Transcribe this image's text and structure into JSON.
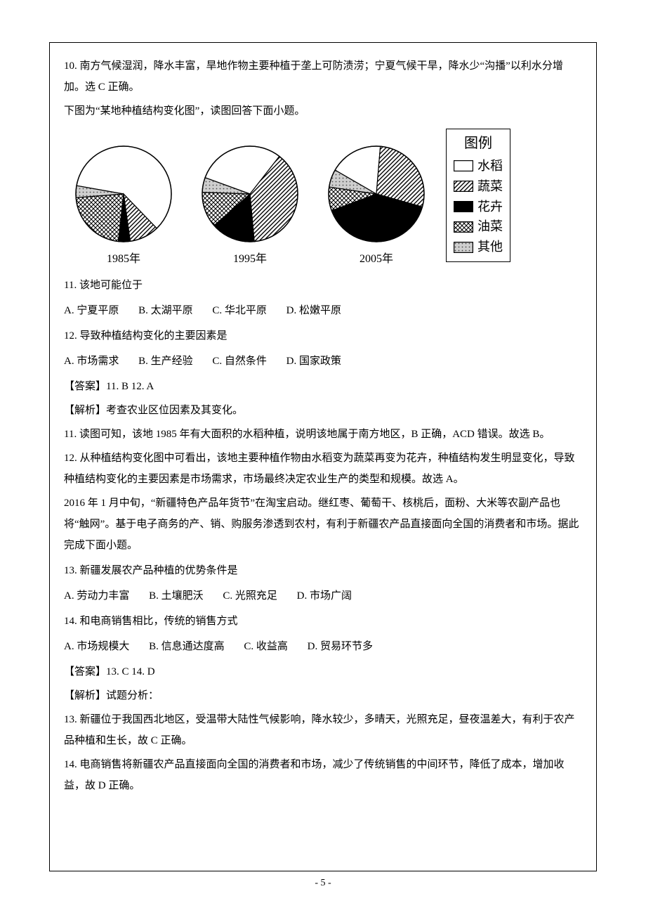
{
  "line_q10_expl": "10. 南方气候湿润，降水丰富，旱地作物主要种植于垄上可防渍涝；宁夏气候干旱，降水少“沟播”以利水分增加。选 C 正确。",
  "fig_intro": "下图为“某地种植结构变化图”，读图回答下面小题。",
  "fig": {
    "years": [
      "1985年",
      "1995年",
      "2005年"
    ],
    "legend_title": "图例",
    "legend_items": [
      "水稻",
      "蔬菜",
      "花卉",
      "油菜",
      "其他"
    ],
    "pies": {
      "1985": {
        "水稻": 60,
        "蔬菜": 10,
        "花卉": 4,
        "油菜": 22,
        "其他": 4
      },
      "1995": {
        "水稻": 30,
        "蔬菜": 38,
        "花卉": 15,
        "油菜": 12,
        "其他": 5
      },
      "2005": {
        "水稻": 18,
        "蔬菜": 28,
        "花卉": 40,
        "油菜": 8,
        "其他": 6
      }
    },
    "fills": {
      "水稻": "white",
      "蔬菜": "diag",
      "花卉": "black",
      "油菜": "cross",
      "其他": "dots"
    },
    "colors": {
      "stroke": "#000000",
      "bg": "#ffffff"
    }
  },
  "q11": {
    "stem": "11. 该地可能位于",
    "opts": {
      "A": "A. 宁夏平原",
      "B": "B. 太湖平原",
      "C": "C. 华北平原",
      "D": "D. 松嫩平原"
    }
  },
  "q12": {
    "stem": "12. 导致种植结构变化的主要因素是",
    "opts": {
      "A": "A. 市场需求",
      "B": "B. 生产经验",
      "C": "C. 自然条件",
      "D": "D. 国家政策"
    }
  },
  "ans11_12": "【答案】11. B    12. A",
  "expl11_12_head": "【解析】考查农业区位因素及其变化。",
  "expl11": "11. 读图可知，该地 1985 年有大面积的水稻种植，说明该地属于南方地区，B 正确，ACD 错误。故选 B。",
  "expl12": "12. 从种植结构变化图中可看出，该地主要种植作物由水稻变为蔬菜再变为花卉，种植结构发生明显变化，导致种植结构变化的主要因素是市场需求，市场最终决定农业生产的类型和规模。故选 A。",
  "passage13_14": "2016 年 1 月中旬，“新疆特色产品年货节”在淘宝启动。继红枣、葡萄干、核桃后，面粉、大米等农副产品也将“触网”。基于电子商务的产、销、购服务渗透到农村，有利于新疆农产品直接面向全国的消费者和市场。据此完成下面小题。",
  "q13": {
    "stem": "13. 新疆发展农产品种植的优势条件是",
    "opts": {
      "A": "A. 劳动力丰富",
      "B": "B. 土壤肥沃",
      "C": "C. 光照充足",
      "D": "D. 市场广阔"
    }
  },
  "q14": {
    "stem": "14. 和电商销售相比，传统的销售方式",
    "opts": {
      "A": "A. 市场规模大",
      "B": "B. 信息通达度高",
      "C": "C. 收益高",
      "D": "D. 贸易环节多"
    }
  },
  "ans13_14": "【答案】13. C    14. D",
  "expl13_14_head": "【解析】试题分析：",
  "expl13": "13. 新疆位于我国西北地区，受温带大陆性气候影响，降水较少，多晴天，光照充足，昼夜温差大，有利于农产品种植和生长，故 C 正确。",
  "expl14": "14. 电商销售将新疆农产品直接面向全国的消费者和市场，减少了传统销售的中间环节，降低了成本，增加收益，故 D 正确。",
  "page_number": "- 5 -"
}
